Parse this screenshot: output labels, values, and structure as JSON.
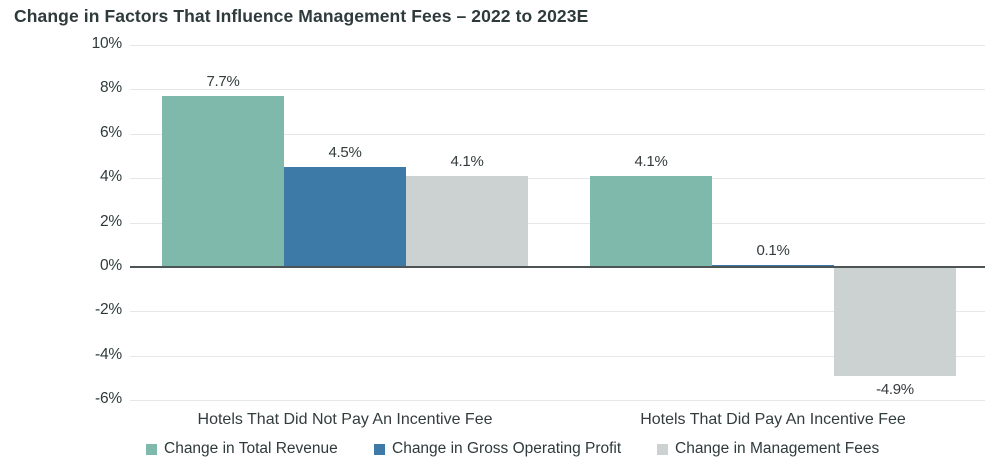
{
  "chart_data": {
    "type": "bar",
    "title": "Change in Factors That Influence Management Fees – 2022 to 2023E",
    "categories": [
      "Hotels That Did Not Pay An Incentive Fee",
      "Hotels That Did Pay An Incentive Fee"
    ],
    "series": [
      {
        "name": "Change in Total Revenue",
        "color": "#7fb9ab",
        "values": [
          7.7,
          4.1
        ],
        "value_labels": [
          "7.7%",
          "4.1%"
        ]
      },
      {
        "name": "Change in Gross Operating Profit",
        "color": "#3d7aa8",
        "values": [
          4.5,
          0.1
        ],
        "value_labels": [
          "4.5%",
          "0.1%"
        ]
      },
      {
        "name": "Change in Management Fees",
        "color": "#ccd2d2",
        "values": [
          4.1,
          -4.9
        ],
        "value_labels": [
          "4.1%",
          "-4.9%"
        ]
      }
    ],
    "ylim": [
      -6,
      10
    ],
    "y_ticks": [
      10,
      8,
      6,
      4,
      2,
      0,
      -2,
      -4,
      -6
    ],
    "y_tick_labels": [
      "10%",
      "8%",
      "6%",
      "4%",
      "2%",
      "0%",
      "-2%",
      "-4%",
      "-6%"
    ],
    "grid": true,
    "legend_position": "bottom",
    "colors": {
      "background": "#ffffff",
      "title_text": "#2e3a3b",
      "axis_text": "#2e3a3b",
      "gridline": "#e7e7e7",
      "zero_line": "#4d5456"
    }
  }
}
